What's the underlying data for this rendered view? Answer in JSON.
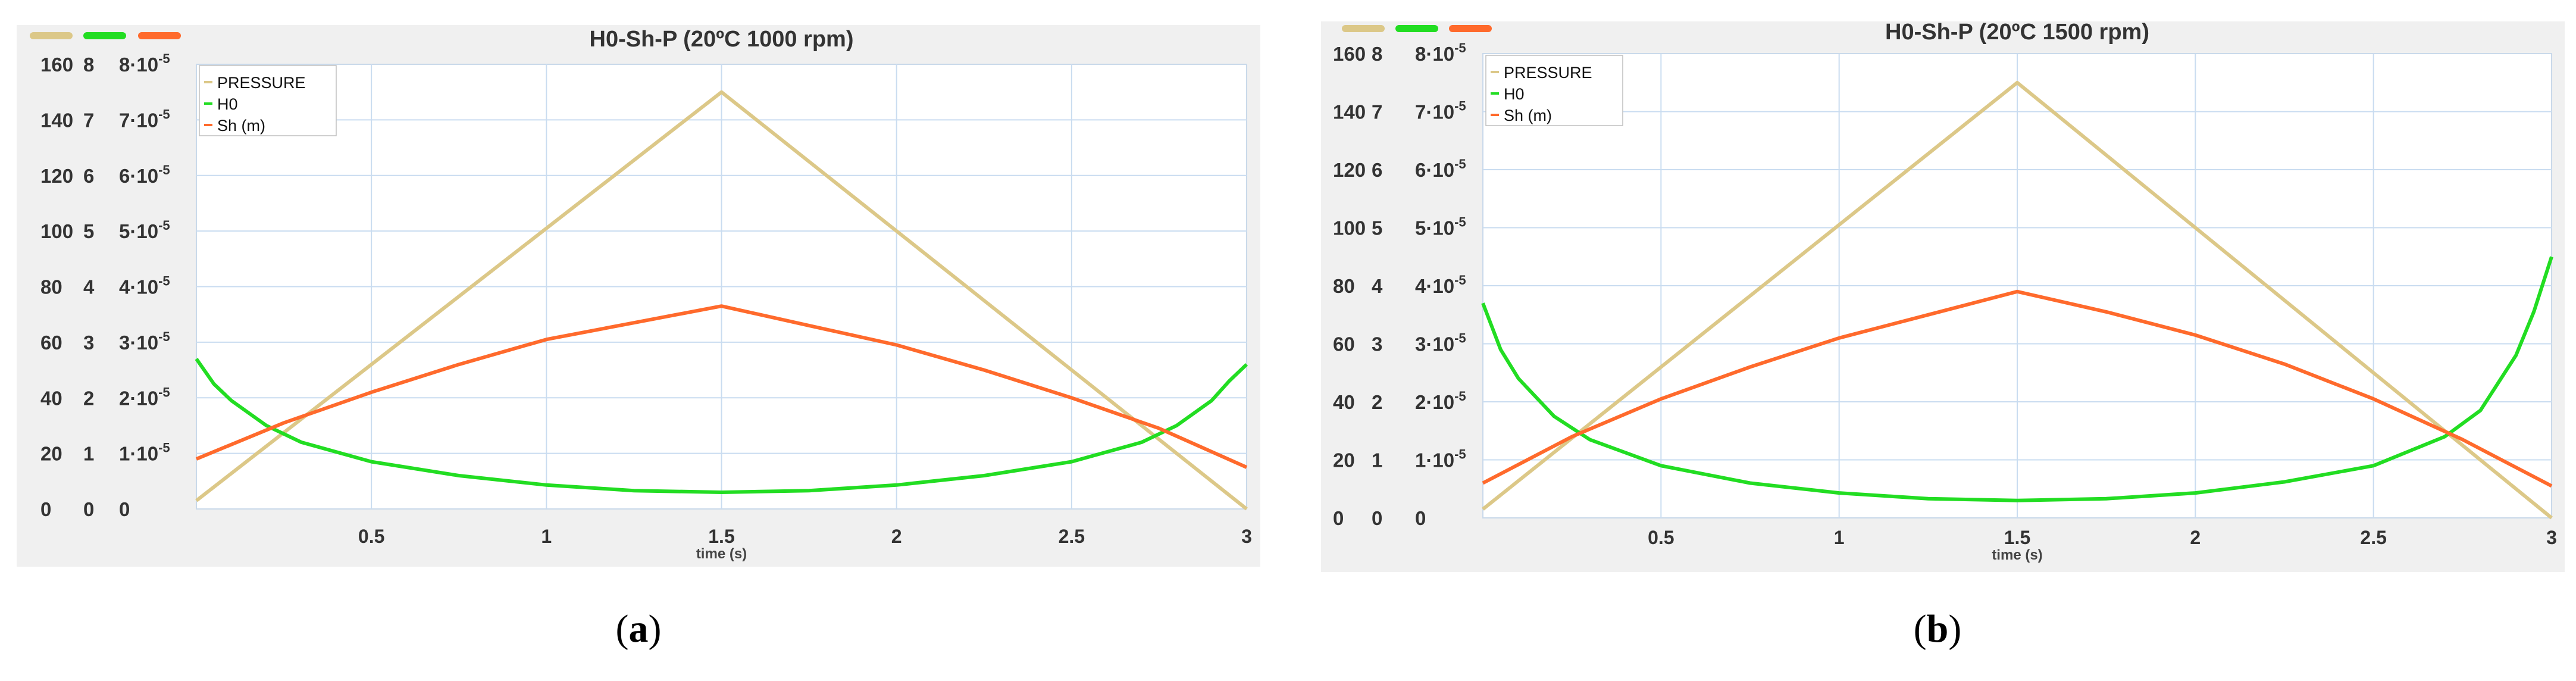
{
  "chart_data": [
    {
      "type": "line",
      "panel_label": "a",
      "title": "H0-Sh-P (20ºC 1000 rpm)",
      "xlabel": "time (s)",
      "xlim": [
        0,
        3
      ],
      "x_ticks": [
        "0.5",
        "1",
        "1.5",
        "2",
        "2.5",
        "3"
      ],
      "y_axes": [
        {
          "ticks": [
            "160",
            "140",
            "120",
            "100",
            "80",
            "60",
            "40",
            "20",
            "0"
          ],
          "ylim": [
            0,
            160
          ]
        },
        {
          "ticks": [
            "8",
            "7",
            "6",
            "5",
            "4",
            "3",
            "2",
            "1",
            "0"
          ],
          "ylim": [
            0,
            8
          ]
        },
        {
          "ticks": [
            "8·10",
            "7·10",
            "6·10",
            "5·10",
            "4·10",
            "3·10",
            "2·10",
            "1·10",
            "0"
          ],
          "exponent": "-5",
          "ylim": [
            0,
            8e-05
          ]
        }
      ],
      "grid": true,
      "legend_position": "top-left",
      "series": [
        {
          "name": "PRESSURE",
          "color": "#dcc888",
          "x": [
            0,
            1.5,
            3
          ],
          "y": [
            3,
            150,
            0
          ]
        },
        {
          "name": "H0",
          "color": "#22dd22",
          "x": [
            0,
            0.05,
            0.1,
            0.2,
            0.3,
            0.5,
            0.75,
            1.0,
            1.25,
            1.5,
            1.75,
            2.0,
            2.25,
            2.5,
            2.7,
            2.8,
            2.9,
            2.95,
            3
          ],
          "y": [
            2.7,
            2.25,
            1.95,
            1.5,
            1.2,
            0.85,
            0.6,
            0.43,
            0.33,
            0.3,
            0.33,
            0.43,
            0.6,
            0.85,
            1.2,
            1.5,
            1.95,
            2.3,
            2.6
          ]
        },
        {
          "name": "Sh  (m)",
          "color": "#ff6a2c",
          "x": [
            0,
            0.25,
            0.5,
            0.75,
            1.0,
            1.25,
            1.5,
            1.75,
            2.0,
            2.25,
            2.5,
            2.75,
            3
          ],
          "y": [
            9e-06,
            1.55e-05,
            2.1e-05,
            2.6e-05,
            3.05e-05,
            3.35e-05,
            3.65e-05,
            3.3e-05,
            2.95e-05,
            2.5e-05,
            2e-05,
            1.45e-05,
            7.5e-06
          ]
        }
      ]
    },
    {
      "type": "line",
      "panel_label": "b",
      "title": "H0-Sh-P (20ºC 1500 rpm)",
      "xlabel": "time (s)",
      "xlim": [
        0,
        3
      ],
      "x_ticks": [
        "0.5",
        "1",
        "1.5",
        "2",
        "2.5",
        "3"
      ],
      "y_axes": [
        {
          "ticks": [
            "160",
            "140",
            "120",
            "100",
            "80",
            "60",
            "40",
            "20",
            "0"
          ],
          "ylim": [
            0,
            160
          ]
        },
        {
          "ticks": [
            "8",
            "7",
            "6",
            "5",
            "4",
            "3",
            "2",
            "1",
            "0"
          ],
          "ylim": [
            0,
            8
          ]
        },
        {
          "ticks": [
            "8·10",
            "7·10",
            "6·10",
            "5·10",
            "4·10",
            "3·10",
            "2·10",
            "1·10",
            "0"
          ],
          "exponent": "-5",
          "ylim": [
            0,
            8e-05
          ]
        }
      ],
      "grid": true,
      "legend_position": "top-left",
      "series": [
        {
          "name": "PRESSURE",
          "color": "#dcc888",
          "x": [
            0,
            1.5,
            3
          ],
          "y": [
            3,
            150,
            0
          ]
        },
        {
          "name": "H0",
          "color": "#22dd22",
          "x": [
            0,
            0.05,
            0.1,
            0.2,
            0.3,
            0.5,
            0.75,
            1.0,
            1.25,
            1.5,
            1.75,
            2.0,
            2.25,
            2.5,
            2.7,
            2.8,
            2.9,
            2.95,
            3
          ],
          "y": [
            3.7,
            2.9,
            2.4,
            1.75,
            1.35,
            0.9,
            0.6,
            0.43,
            0.33,
            0.3,
            0.33,
            0.43,
            0.62,
            0.9,
            1.4,
            1.85,
            2.8,
            3.55,
            4.5
          ]
        },
        {
          "name": "Sh (m)",
          "color": "#ff6a2c",
          "x": [
            0,
            0.25,
            0.5,
            0.75,
            1.0,
            1.25,
            1.5,
            1.75,
            2.0,
            2.25,
            2.5,
            2.75,
            3
          ],
          "y": [
            6e-06,
            1.4e-05,
            2.05e-05,
            2.6e-05,
            3.1e-05,
            3.5e-05,
            3.9e-05,
            3.55e-05,
            3.15e-05,
            2.65e-05,
            2.05e-05,
            1.35e-05,
            5.5e-06
          ]
        }
      ]
    }
  ],
  "captions": [
    "(a)",
    "(b)"
  ]
}
